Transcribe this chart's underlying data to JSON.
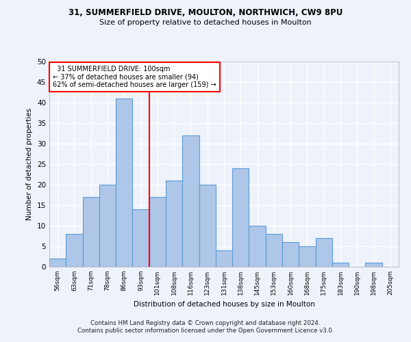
{
  "title1": "31, SUMMERFIELD DRIVE, MOULTON, NORTHWICH, CW9 8PU",
  "title2": "Size of property relative to detached houses in Moulton",
  "xlabel": "Distribution of detached houses by size in Moulton",
  "ylabel": "Number of detached properties",
  "footer1": "Contains HM Land Registry data © Crown copyright and database right 2024.",
  "footer2": "Contains public sector information licensed under the Open Government Licence v3.0.",
  "categories": [
    "56sqm",
    "63sqm",
    "71sqm",
    "78sqm",
    "86sqm",
    "93sqm",
    "101sqm",
    "108sqm",
    "116sqm",
    "123sqm",
    "131sqm",
    "138sqm",
    "145sqm",
    "153sqm",
    "160sqm",
    "168sqm",
    "175sqm",
    "183sqm",
    "190sqm",
    "198sqm",
    "205sqm"
  ],
  "values": [
    2,
    8,
    17,
    20,
    41,
    14,
    17,
    21,
    32,
    20,
    4,
    24,
    10,
    8,
    6,
    5,
    7,
    1,
    0,
    1,
    0
  ],
  "bar_color": "#aec6e8",
  "bar_edge_color": "#5b9bd5",
  "annotation_text": "  31 SUMMERFIELD DRIVE: 100sqm  \n← 37% of detached houses are smaller (94)\n62% of semi-detached houses are larger (159) →",
  "annotation_box_color": "white",
  "annotation_box_edge_color": "red",
  "line_color": "red",
  "ylim": [
    0,
    50
  ],
  "yticks": [
    0,
    5,
    10,
    15,
    20,
    25,
    30,
    35,
    40,
    45,
    50
  ],
  "background_color": "#eef2fb",
  "grid_color": "white"
}
